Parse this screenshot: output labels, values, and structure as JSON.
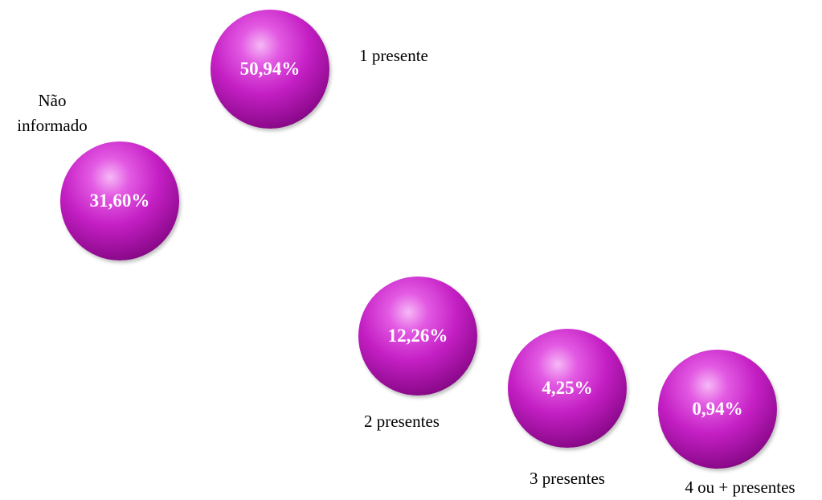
{
  "nodes": [
    {
      "label": "1 presente",
      "value": "50,94%"
    },
    {
      "label": "Não informado",
      "value": "31,60%"
    },
    {
      "label": "2 presentes",
      "value": "12,26%"
    },
    {
      "label": "3 presentes",
      "value": "4,25%"
    },
    {
      "label": "4 ou + presentes",
      "value": "0,94%"
    }
  ]
}
